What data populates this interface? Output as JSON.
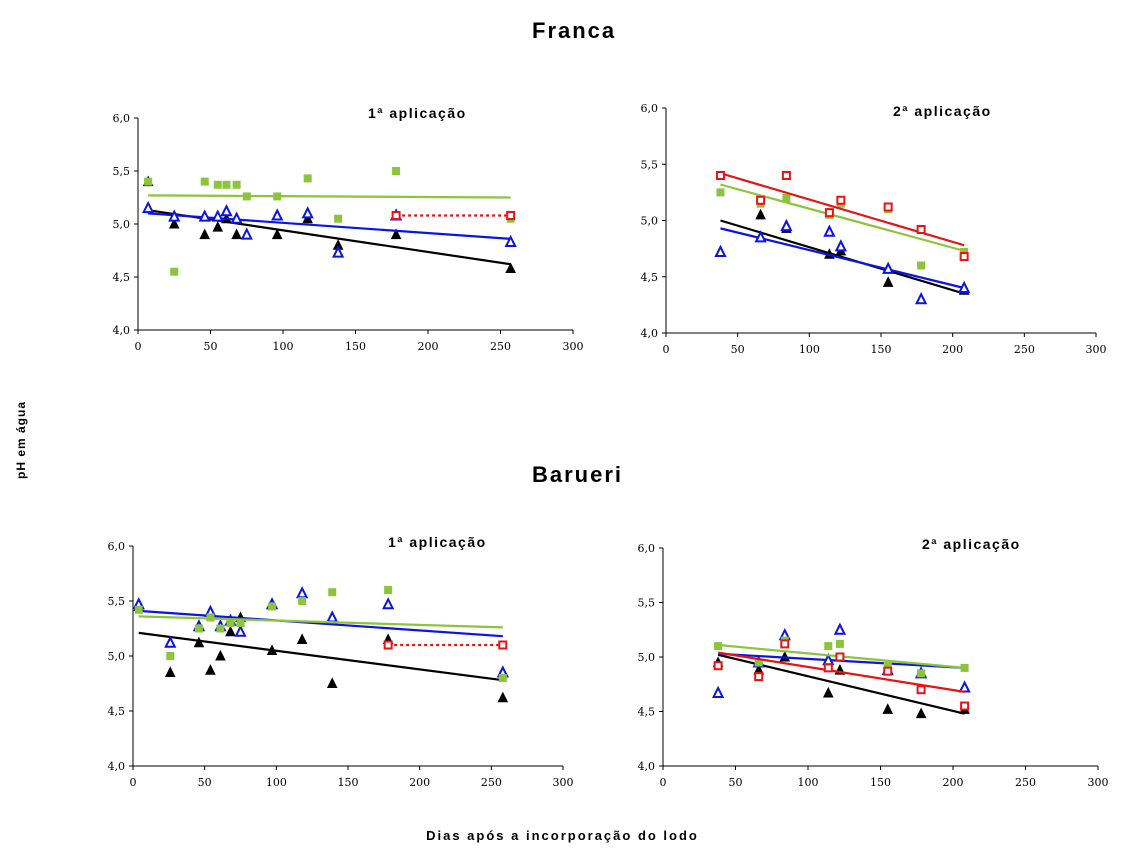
{
  "figure": {
    "group_titles": [
      "Franca",
      "Barueri"
    ],
    "ylabel": "pH em água",
    "xlabel": "Dias após a incorporação do lodo"
  },
  "colors": {
    "black": "#000000",
    "blue": "#0a14e6",
    "green": "#8cc43c",
    "red": "#e61414"
  },
  "chart_data": [
    {
      "type": "scatter",
      "title": "1ª aplicação",
      "xlim": [
        0,
        300
      ],
      "ylim": [
        4.0,
        6.0
      ],
      "xticks": [
        "0",
        "50",
        "100",
        "150",
        "200",
        "250",
        "300"
      ],
      "yticks": [
        "4,0",
        "4,5",
        "5,0",
        "5,5",
        "6,0"
      ],
      "series": [
        {
          "color": "black",
          "marker": "triangle",
          "x": [
            7,
            25,
            25,
            46,
            55,
            61,
            68,
            96,
            117,
            138,
            178,
            257
          ],
          "y": [
            5.4,
            5.07,
            5.0,
            4.9,
            4.97,
            5.05,
            4.9,
            4.9,
            5.05,
            4.8,
            4.9,
            4.58
          ],
          "trend": [
            5.13,
            4.62
          ]
        },
        {
          "color": "blue",
          "marker": "triangle-open",
          "x": [
            7,
            25,
            46,
            55,
            61,
            68,
            75,
            96,
            117,
            138,
            178,
            257
          ],
          "y": [
            5.15,
            5.07,
            5.07,
            5.07,
            5.12,
            5.05,
            4.9,
            5.08,
            5.1,
            4.73,
            5.08,
            4.83
          ],
          "trend": [
            5.1,
            4.86
          ]
        },
        {
          "color": "green",
          "marker": "square",
          "x": [
            7,
            25,
            46,
            55,
            61,
            68,
            75,
            96,
            117,
            138,
            178,
            257
          ],
          "y": [
            5.4,
            4.55,
            5.4,
            5.37,
            5.37,
            5.37,
            5.26,
            5.26,
            5.43,
            5.05,
            5.5,
            5.05
          ],
          "trend": [
            5.27,
            5.25
          ]
        },
        {
          "color": "red",
          "marker": "square-open",
          "x": [
            178,
            257
          ],
          "y": [
            5.08,
            5.08
          ],
          "trend": [
            5.08,
            5.08
          ],
          "dashed": true
        }
      ]
    },
    {
      "type": "scatter",
      "title": "2ª aplicação",
      "xlim": [
        0,
        300
      ],
      "ylim": [
        4.0,
        6.0
      ],
      "xticks": [
        "0",
        "50",
        "100",
        "150",
        "200",
        "250",
        "300"
      ],
      "yticks": [
        "4,0",
        "4,5",
        "5,0",
        "5,5",
        "6,0"
      ],
      "series": [
        {
          "color": "black",
          "marker": "triangle",
          "x": [
            38,
            66,
            84,
            114,
            122,
            155,
            178,
            208
          ],
          "y": [
            4.72,
            5.05,
            4.93,
            4.7,
            4.73,
            4.45,
            4.3,
            4.38
          ],
          "trend": [
            5.0,
            4.35
          ]
        },
        {
          "color": "blue",
          "marker": "triangle-open",
          "x": [
            38,
            66,
            84,
            114,
            122,
            155,
            178,
            208
          ],
          "y": [
            4.72,
            4.85,
            4.95,
            4.9,
            4.77,
            4.57,
            4.3,
            4.4
          ],
          "trend": [
            4.93,
            4.4
          ]
        },
        {
          "color": "green",
          "marker": "square",
          "x": [
            38,
            66,
            84,
            114,
            122,
            155,
            178,
            208
          ],
          "y": [
            5.25,
            5.15,
            5.2,
            5.05,
            5.15,
            5.1,
            4.6,
            4.72
          ],
          "trend": [
            5.32,
            4.73
          ]
        },
        {
          "color": "red",
          "marker": "square-open",
          "x": [
            38,
            66,
            84,
            114,
            122,
            155,
            178,
            208
          ],
          "y": [
            5.4,
            5.18,
            5.4,
            5.07,
            5.18,
            5.12,
            4.92,
            4.68
          ],
          "trend": [
            5.42,
            4.78
          ]
        }
      ]
    },
    {
      "type": "scatter",
      "title": "1ª aplicação",
      "xlim": [
        0,
        300
      ],
      "ylim": [
        4.0,
        6.0
      ],
      "xticks": [
        "0",
        "50",
        "100",
        "150",
        "200",
        "250",
        "300"
      ],
      "yticks": [
        "4,0",
        "4,5",
        "5,0",
        "5,5",
        "6,0"
      ],
      "series": [
        {
          "color": "black",
          "marker": "triangle",
          "x": [
            4,
            26,
            46,
            54,
            61,
            68,
            75,
            97,
            118,
            139,
            178,
            258
          ],
          "y": [
            5.45,
            4.85,
            5.12,
            4.87,
            5.0,
            5.22,
            5.35,
            5.05,
            5.15,
            4.75,
            5.15,
            4.62
          ],
          "trend": [
            5.21,
            4.78
          ]
        },
        {
          "color": "blue",
          "marker": "triangle-open",
          "x": [
            4,
            26,
            46,
            54,
            61,
            68,
            75,
            97,
            118,
            139,
            178,
            258
          ],
          "y": [
            5.47,
            5.12,
            5.27,
            5.4,
            5.27,
            5.32,
            5.22,
            5.47,
            5.57,
            5.35,
            5.47,
            4.85
          ],
          "trend": [
            5.41,
            5.18
          ]
        },
        {
          "color": "green",
          "marker": "square",
          "x": [
            4,
            26,
            46,
            54,
            61,
            68,
            75,
            97,
            118,
            139,
            178,
            258
          ],
          "y": [
            5.42,
            5.0,
            5.25,
            5.35,
            5.25,
            5.3,
            5.3,
            5.45,
            5.5,
            5.58,
            5.6,
            4.8
          ],
          "trend": [
            5.36,
            5.26
          ]
        },
        {
          "color": "red",
          "marker": "square-open",
          "x": [
            178,
            258
          ],
          "y": [
            5.1,
            5.1
          ],
          "trend": [
            5.1,
            5.1
          ],
          "dashed": true
        }
      ]
    },
    {
      "type": "scatter",
      "title": "2ª aplicação",
      "xlim": [
        0,
        300
      ],
      "ylim": [
        4.0,
        6.0
      ],
      "xticks": [
        "0",
        "50",
        "100",
        "150",
        "200",
        "250",
        "300"
      ],
      "yticks": [
        "4,0",
        "4,5",
        "5,0",
        "5,5",
        "6,0"
      ],
      "series": [
        {
          "color": "black",
          "marker": "triangle",
          "x": [
            38,
            66,
            84,
            114,
            122,
            155,
            178,
            208
          ],
          "y": [
            4.95,
            4.88,
            5.0,
            4.67,
            4.88,
            4.52,
            4.48,
            4.52
          ],
          "trend": [
            5.02,
            4.48
          ]
        },
        {
          "color": "blue",
          "marker": "triangle-open",
          "x": [
            38,
            66,
            84,
            114,
            122,
            155,
            178,
            208
          ],
          "y": [
            4.67,
            4.95,
            5.2,
            4.97,
            5.25,
            4.88,
            4.85,
            4.72
          ],
          "trend": [
            5.03,
            4.9
          ]
        },
        {
          "color": "green",
          "marker": "square",
          "x": [
            38,
            66,
            84,
            114,
            122,
            155,
            178,
            208
          ],
          "y": [
            5.1,
            4.95,
            5.15,
            5.1,
            5.12,
            4.92,
            4.85,
            4.9
          ],
          "trend": [
            5.11,
            4.9
          ]
        },
        {
          "color": "red",
          "marker": "square-open",
          "x": [
            38,
            66,
            84,
            114,
            122,
            155,
            178,
            208
          ],
          "y": [
            4.92,
            4.82,
            5.12,
            4.9,
            5.0,
            4.87,
            4.7,
            4.55
          ],
          "trend": [
            5.04,
            4.68
          ]
        }
      ]
    }
  ]
}
